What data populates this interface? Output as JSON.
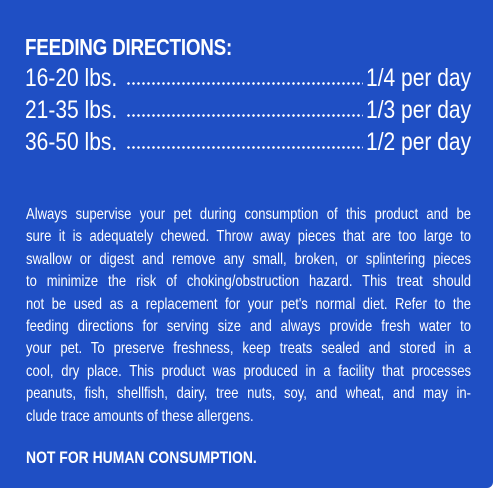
{
  "feeding": {
    "heading": "FEEDING DIRECTIONS:",
    "rows": [
      {
        "weight": "16-20 lbs.",
        "amount": "1/4 per day"
      },
      {
        "weight": "21-35 lbs.",
        "amount": "1/3 per day"
      },
      {
        "weight": "36-50 lbs.",
        "amount": "1/2 per day"
      }
    ]
  },
  "warning": {
    "lines": [
      "Always supervise your pet during consumption of this product and be",
      "sure it is adequately chewed. Throw away pieces that are too large to",
      "swallow or digest and remove any small, broken, or splintering pieces",
      "to minimize the risk of choking/obstruction hazard. This treat should",
      "not be used as a replacement for your pet's normal diet. Refer to the",
      "feeding directions for serving size and always provide fresh water to",
      "your pet. To preserve freshness, keep treats sealed and stored in a",
      "cool, dry place. This product was produced in a facility that processes",
      "peanuts, fish, shellfish, dairy, tree nuts, soy, and wheat, and may in-",
      "clude trace amounts of these allergens."
    ],
    "notice": "NOT FOR HUMAN CONSUMPTION."
  },
  "colors": {
    "panel_background": "#1f4fc4",
    "text": "#ffffff",
    "page_background": "#ffffff"
  }
}
